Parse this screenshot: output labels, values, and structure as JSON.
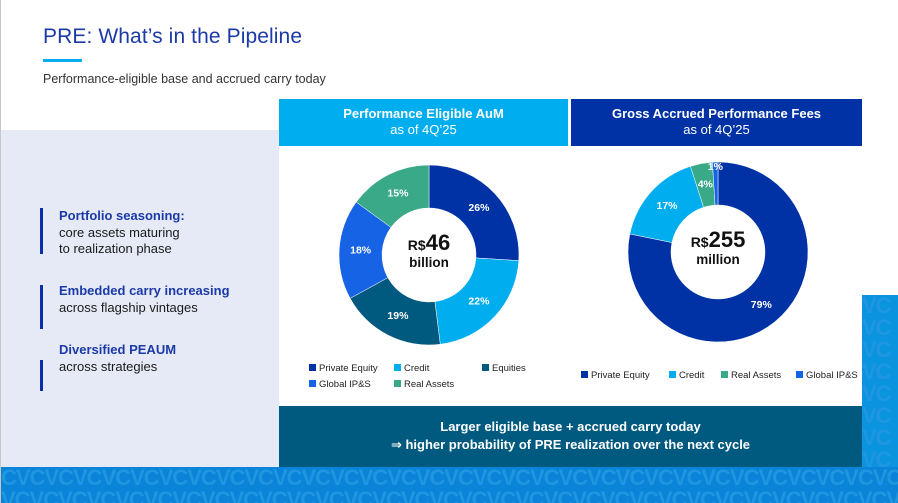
{
  "header": {
    "title": "PRE: What’s in the Pipeline",
    "subtitle": "Performance-eligible base and accrued carry today"
  },
  "key_points": [
    {
      "heading": "Portfolio seasoning:",
      "body_lines": [
        "core assets maturing",
        "to realization phase"
      ]
    },
    {
      "heading": "Embedded carry increasing",
      "body_lines": [
        "across flagship vintages"
      ]
    },
    {
      "heading": "Diversified PEAUM",
      "body_lines": [
        "across strategies"
      ]
    }
  ],
  "colors": {
    "private_equity": "#0032a6",
    "credit": "#00aeef",
    "equities": "#005a80",
    "global_ips": "#1763e6",
    "real_assets": "#3aa987"
  },
  "chart_data": [
    {
      "type": "pie",
      "style": "donut",
      "title": "Performance Eligible AuM",
      "subtitle": "as of 4Q’25",
      "center_label": {
        "currency": "R$",
        "value": "46",
        "unit": "billion"
      },
      "start": "top, clockwise",
      "legend_placement": "bottom",
      "slices": [
        {
          "name": "Private Equity",
          "value": 26,
          "label": "26%",
          "color": "#0032a6"
        },
        {
          "name": "Credit",
          "value": 22,
          "label": "22%",
          "color": "#00aeef"
        },
        {
          "name": "Equities",
          "value": 19,
          "label": "19%",
          "color": "#005a80"
        },
        {
          "name": "Global IP&S",
          "value": 18,
          "label": "18%",
          "color": "#1763e6"
        },
        {
          "name": "Real Assets",
          "value": 15,
          "label": "15%",
          "color": "#3aa987"
        }
      ],
      "legend": [
        "Private Equity",
        "Credit",
        "Equities",
        "Global IP&S",
        "Real Assets"
      ]
    },
    {
      "type": "pie",
      "style": "donut",
      "title": "Gross Accrued Performance Fees",
      "subtitle": "as of 4Q’25",
      "center_label": {
        "currency": "R$",
        "value": "255",
        "unit": "million"
      },
      "start": "top, clockwise",
      "legend_placement": "bottom",
      "slices": [
        {
          "name": "Private Equity",
          "value": 79,
          "label": "79%",
          "color": "#0032a6"
        },
        {
          "name": "Credit",
          "value": 17,
          "label": "17%",
          "color": "#00aeef"
        },
        {
          "name": "Real Assets",
          "value": 4,
          "label": "4%",
          "color": "#3aa987"
        },
        {
          "name": "Global IP&S",
          "value": 1,
          "label": "1%",
          "color": "#1763e6"
        }
      ],
      "legend": [
        "Private Equity",
        "Credit",
        "Real Assets",
        "Global IP&S"
      ]
    }
  ],
  "callout": {
    "line1": "Larger eligible base + accrued carry today",
    "line2": "⇒ higher probability of PRE realization over the next cycle"
  },
  "brand_pattern": "VC"
}
